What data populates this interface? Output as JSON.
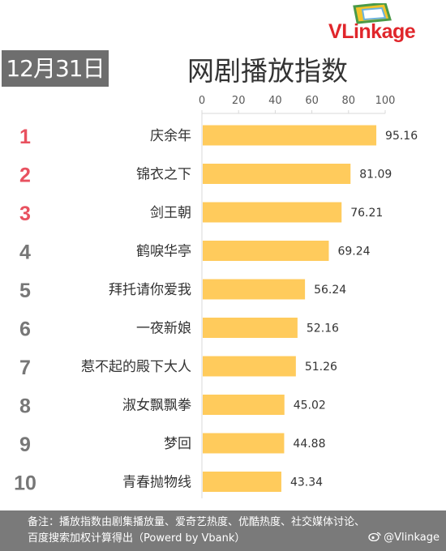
{
  "date_badge": "12月31日",
  "title": "网剧播放指数",
  "logo": {
    "v": "V",
    "link": "Link",
    "age": "age"
  },
  "chart_data": {
    "type": "bar",
    "orientation": "horizontal",
    "title": "网剧播放指数",
    "categories": [
      "庆余年",
      "锦衣之下",
      "剑王朝",
      "鹤唳华亭",
      "拜托请你爱我",
      "一夜新娘",
      "惹不起的殿下大人",
      "淑女飘飘拳",
      "梦回",
      "青春抛物线"
    ],
    "ranks": [
      "1",
      "2",
      "3",
      "4",
      "5",
      "6",
      "7",
      "8",
      "9",
      "10"
    ],
    "values": [
      95.16,
      81.09,
      76.21,
      69.24,
      56.24,
      52.16,
      51.26,
      45.02,
      44.88,
      43.34
    ],
    "value_labels": [
      "95.16",
      "81.09",
      "76.21",
      "69.24",
      "56.24",
      "52.16",
      "51.26",
      "45.02",
      "44.88",
      "43.34"
    ],
    "xticks": [
      "0",
      "20",
      "40",
      "60",
      "80",
      "100"
    ],
    "xlim": [
      0,
      100
    ],
    "axis_position": "top",
    "grid": false,
    "bar_color": "#ffcb5c",
    "rank_color_top3": "#e8515f",
    "rank_color_rest": "#777777"
  },
  "footer": {
    "line1": "备注：播放指数由剧集播放量、爱奇艺热度、优酷热度、社交媒体讨论、",
    "line2": "百度搜索加权计算得出（Powerd by Vbank）"
  },
  "watermark": "@Vlinkage"
}
